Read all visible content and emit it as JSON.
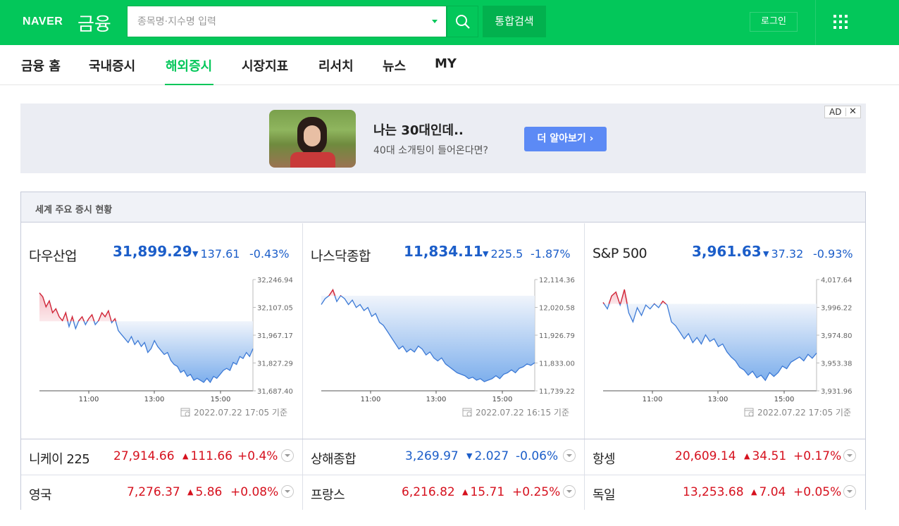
{
  "header": {
    "logo_naver": "NAVER",
    "logo_finance": "금융",
    "search_placeholder": "종목명·지수명 입력",
    "total_search": "통합검색",
    "login": "로그인"
  },
  "nav": {
    "items": [
      "금융 홈",
      "국내증시",
      "해외증시",
      "시장지표",
      "리서치",
      "뉴스",
      "MY"
    ],
    "active": "해외증시"
  },
  "ad": {
    "title": "나는 30대인데..",
    "subtitle": "40대 소개팅이 들어온다면?",
    "button": "더 알아보기 ›",
    "tag": "AD",
    "close": "✕"
  },
  "world": {
    "title": "세계 주요 증시 현황",
    "panels": [
      {
        "name": "다우산업",
        "value": "31,899.29",
        "change": "137.61",
        "direction": "down",
        "percent": "-0.43%",
        "stamp": "2022.07.22 17:05 기준",
        "y_ticks": [
          "32,246.94",
          "32,107.05",
          "31,967.17",
          "31,827.29",
          "31,687.40"
        ],
        "x_ticks": [
          "11:00",
          "13:00",
          "15:00"
        ],
        "y_range": [
          31687.4,
          32246.94
        ],
        "baseline": 32036.9,
        "series": [
          32180,
          32160,
          32110,
          32140,
          32080,
          32100,
          32060,
          32040,
          32080,
          32010,
          32060,
          32000,
          32040,
          32060,
          32020,
          32050,
          32070,
          32020,
          32040,
          32080,
          32060,
          32090,
          32030,
          32050,
          31990,
          31970,
          31950,
          31930,
          31960,
          31920,
          31940,
          31910,
          31930,
          31880,
          31900,
          31940,
          31910,
          31890,
          31870,
          31880,
          31840,
          31820,
          31810,
          31780,
          31790,
          31760,
          31770,
          31740,
          31750,
          31740,
          31730,
          31750,
          31730,
          31760,
          31750,
          31770,
          31790,
          31800,
          31790,
          31830,
          31820,
          31860,
          31850,
          31880,
          31860,
          31899
        ]
      },
      {
        "name": "나스닥종합",
        "value": "11,834.11",
        "change": "225.5",
        "direction": "down",
        "percent": "-1.87%",
        "stamp": "2022.07.22 16:15 기준",
        "y_ticks": [
          "12,114.36",
          "12,020.58",
          "11,926.79",
          "11,833.00",
          "11,739.22"
        ],
        "x_ticks": [
          "11:00",
          "13:00",
          "15:00"
        ],
        "y_range": [
          11739.22,
          12114.36
        ],
        "baseline": 12059.61,
        "series": [
          12030,
          12050,
          12060,
          12080,
          12040,
          12060,
          12050,
          12030,
          12045,
          12020,
          12030,
          12010,
          12020,
          11990,
          12000,
          11970,
          11960,
          11940,
          11920,
          11900,
          11880,
          11890,
          11870,
          11880,
          11870,
          11890,
          11880,
          11860,
          11870,
          11850,
          11840,
          11850,
          11830,
          11820,
          11810,
          11800,
          11795,
          11790,
          11780,
          11785,
          11775,
          11780,
          11770,
          11775,
          11780,
          11790,
          11780,
          11795,
          11800,
          11810,
          11800,
          11815,
          11820,
          11830,
          11825,
          11834
        ]
      },
      {
        "name": "S&P 500",
        "value": "3,961.63",
        "change": "37.32",
        "direction": "down",
        "percent": "-0.93%",
        "stamp": "2022.07.22 17:05 기준",
        "y_ticks": [
          "4,017.64",
          "3,996.22",
          "3,974.80",
          "3,953.38",
          "3,931.96"
        ],
        "x_ticks": [
          "11:00",
          "13:00",
          "15:00"
        ],
        "y_range": [
          3931.96,
          4017.64
        ],
        "baseline": 3998.95,
        "series": [
          4000,
          3995,
          4005,
          4008,
          3998,
          4010,
          3992,
          3985,
          3996,
          3990,
          3998,
          3995,
          3999,
          3996,
          4001,
          3998,
          3985,
          3982,
          3977,
          3972,
          3976,
          3969,
          3973,
          3968,
          3975,
          3970,
          3972,
          3966,
          3968,
          3962,
          3958,
          3955,
          3950,
          3948,
          3944,
          3947,
          3942,
          3944,
          3940,
          3946,
          3943,
          3946,
          3951,
          3949,
          3954,
          3956,
          3958,
          3955,
          3960,
          3957,
          3961
        ]
      }
    ],
    "rows": [
      [
        {
          "name": "니케이 225",
          "value": "27,914.66",
          "change": "111.66",
          "direction": "up",
          "percent": "+0.4%"
        },
        {
          "name": "상해종합",
          "value": "3,269.97",
          "change": "2.027",
          "direction": "down",
          "percent": "-0.06%"
        },
        {
          "name": "항셍",
          "value": "20,609.14",
          "change": "34.51",
          "direction": "up",
          "percent": "+0.17%"
        }
      ],
      [
        {
          "name": "영국",
          "value": "7,276.37",
          "change": "5.86",
          "direction": "up",
          "percent": "+0.08%"
        },
        {
          "name": "프랑스",
          "value": "6,216.82",
          "change": "15.71",
          "direction": "up",
          "percent": "+0.25%"
        },
        {
          "name": "독일",
          "value": "13,253.68",
          "change": "7.04",
          "direction": "up",
          "percent": "+0.05%"
        }
      ]
    ]
  },
  "colors": {
    "brand": "#03c75a",
    "up": "#d6111e",
    "down": "#1c5ec9"
  }
}
